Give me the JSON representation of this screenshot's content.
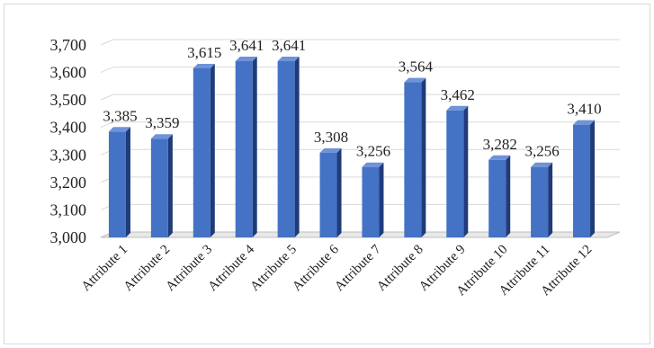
{
  "chart_data": {
    "type": "bar",
    "title": "",
    "xlabel": "",
    "ylabel": "",
    "categories": [
      "Attribute 1",
      "Attribute 2",
      "Attribute 3",
      "Attribute 4",
      "Attribute 5",
      "Attribute 6",
      "Attribute 7",
      "Attribute 8",
      "Attribute 9",
      "Attribute 10",
      "Attribute 11",
      "Attribute 12"
    ],
    "values": [
      3385,
      3359,
      3615,
      3641,
      3641,
      3308,
      3256,
      3564,
      3462,
      3282,
      3256,
      3410
    ],
    "data_labels": [
      "3,385",
      "3,359",
      "3,615",
      "3,641",
      "3,641",
      "3,308",
      "3,256",
      "3,564",
      "3,462",
      "3,282",
      "3,256",
      "3,410"
    ],
    "ylim": [
      3000,
      3700
    ],
    "y_ticks": [
      3000,
      3100,
      3200,
      3300,
      3400,
      3500,
      3600,
      3700
    ],
    "y_tick_labels": [
      "3,000",
      "3,100",
      "3,200",
      "3,300",
      "3,400",
      "3,500",
      "3,600",
      "3,700"
    ],
    "grid": true,
    "style": "3d-column",
    "colors": {
      "bar_front": "#4472c4",
      "bar_side": "#1f3b7a",
      "bar_top": "#6f92d8",
      "grid": "#d9d9d9",
      "floor": "#bfbfbf"
    }
  }
}
